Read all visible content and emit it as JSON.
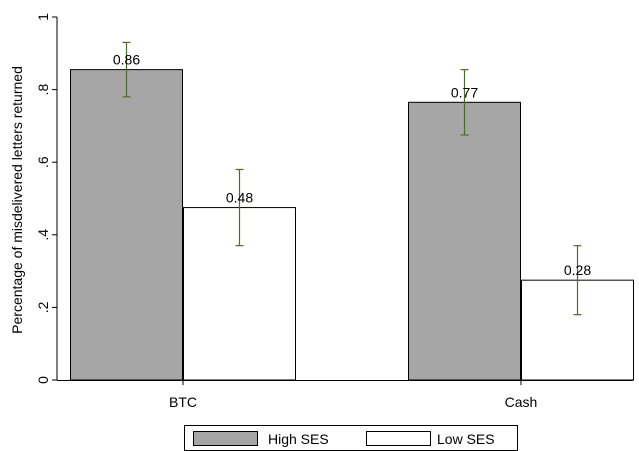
{
  "chart_data": {
    "type": "bar",
    "title": "",
    "xlabel": "",
    "ylabel": "Percentage of misdelivered letters returned",
    "ylim": [
      0,
      1
    ],
    "yticks": [
      0,
      0.2,
      0.4,
      0.6,
      0.8,
      1
    ],
    "ytick_labels": [
      "0",
      ".2",
      ".4",
      ".6",
      ".8",
      "1"
    ],
    "categories": [
      "BTC",
      "Cash"
    ],
    "series": [
      {
        "name": "High SES",
        "color": "#a6a6a6",
        "values": [
          0.855,
          0.765
        ],
        "labels": [
          "0.86",
          "0.77"
        ],
        "ci_low": [
          0.78,
          0.675
        ],
        "ci_high": [
          0.93,
          0.855
        ]
      },
      {
        "name": "Low SES",
        "color": "#ffffff",
        "values": [
          0.475,
          0.275
        ],
        "labels": [
          "0.48",
          "0.28"
        ],
        "ci_low": [
          0.37,
          0.18
        ],
        "ci_high": [
          0.58,
          0.37
        ]
      }
    ],
    "error_bar_color": "#4f6b2a",
    "grid": false,
    "legend_position": "bottom"
  }
}
